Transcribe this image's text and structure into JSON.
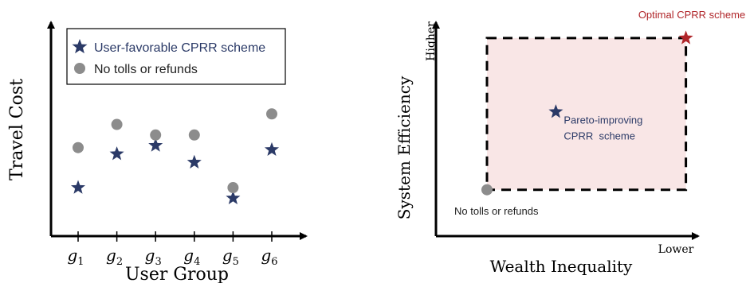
{
  "colors": {
    "star": "#2b3a67",
    "dot": "#8c8c8c",
    "optimal": "#b0262a",
    "region": "#f9e6e6",
    "axis": "#000000"
  },
  "chart_data": [
    {
      "type": "scatter",
      "xlabel": "User Group",
      "ylabel": "Travel Cost",
      "categories": [
        "g1",
        "g2",
        "g3",
        "g4",
        "g5",
        "g6"
      ],
      "category_labels": [
        {
          "base": "g",
          "sub": "1"
        },
        {
          "base": "g",
          "sub": "2"
        },
        {
          "base": "g",
          "sub": "3"
        },
        {
          "base": "g",
          "sub": "4"
        },
        {
          "base": "g",
          "sub": "5"
        },
        {
          "base": "g",
          "sub": "6"
        }
      ],
      "ylim": [
        0,
        10
      ],
      "legend_position": "top",
      "series": [
        {
          "name": "User-favorable CPRR scheme",
          "marker": "star-icon",
          "values": [
            2.3,
            3.9,
            4.3,
            3.5,
            1.8,
            4.1
          ]
        },
        {
          "name": "No tolls or refunds",
          "marker": "circle",
          "values": [
            4.2,
            5.3,
            4.8,
            4.8,
            2.3,
            5.8
          ]
        }
      ]
    },
    {
      "type": "scatter",
      "xlabel": "Wealth Inequality",
      "ylabel": "System Efficiency",
      "x_end_label": "Lower",
      "y_end_label": "Higher",
      "xlim": [
        0,
        10
      ],
      "ylim": [
        0,
        10
      ],
      "region": {
        "x": [
          2,
          9.8
        ],
        "y": [
          2.2,
          9.4
        ]
      },
      "points": [
        {
          "label": "Optimal CPRR scheme",
          "marker": "star-icon",
          "x": 9.8,
          "y": 9.4
        },
        {
          "label_lines": [
            "Pareto-improving",
            "CPRR  scheme"
          ],
          "marker": "star-icon",
          "x": 4.7,
          "y": 5.9
        },
        {
          "label": "No tolls or refunds",
          "marker": "circle",
          "x": 2.0,
          "y": 2.2
        }
      ]
    }
  ]
}
